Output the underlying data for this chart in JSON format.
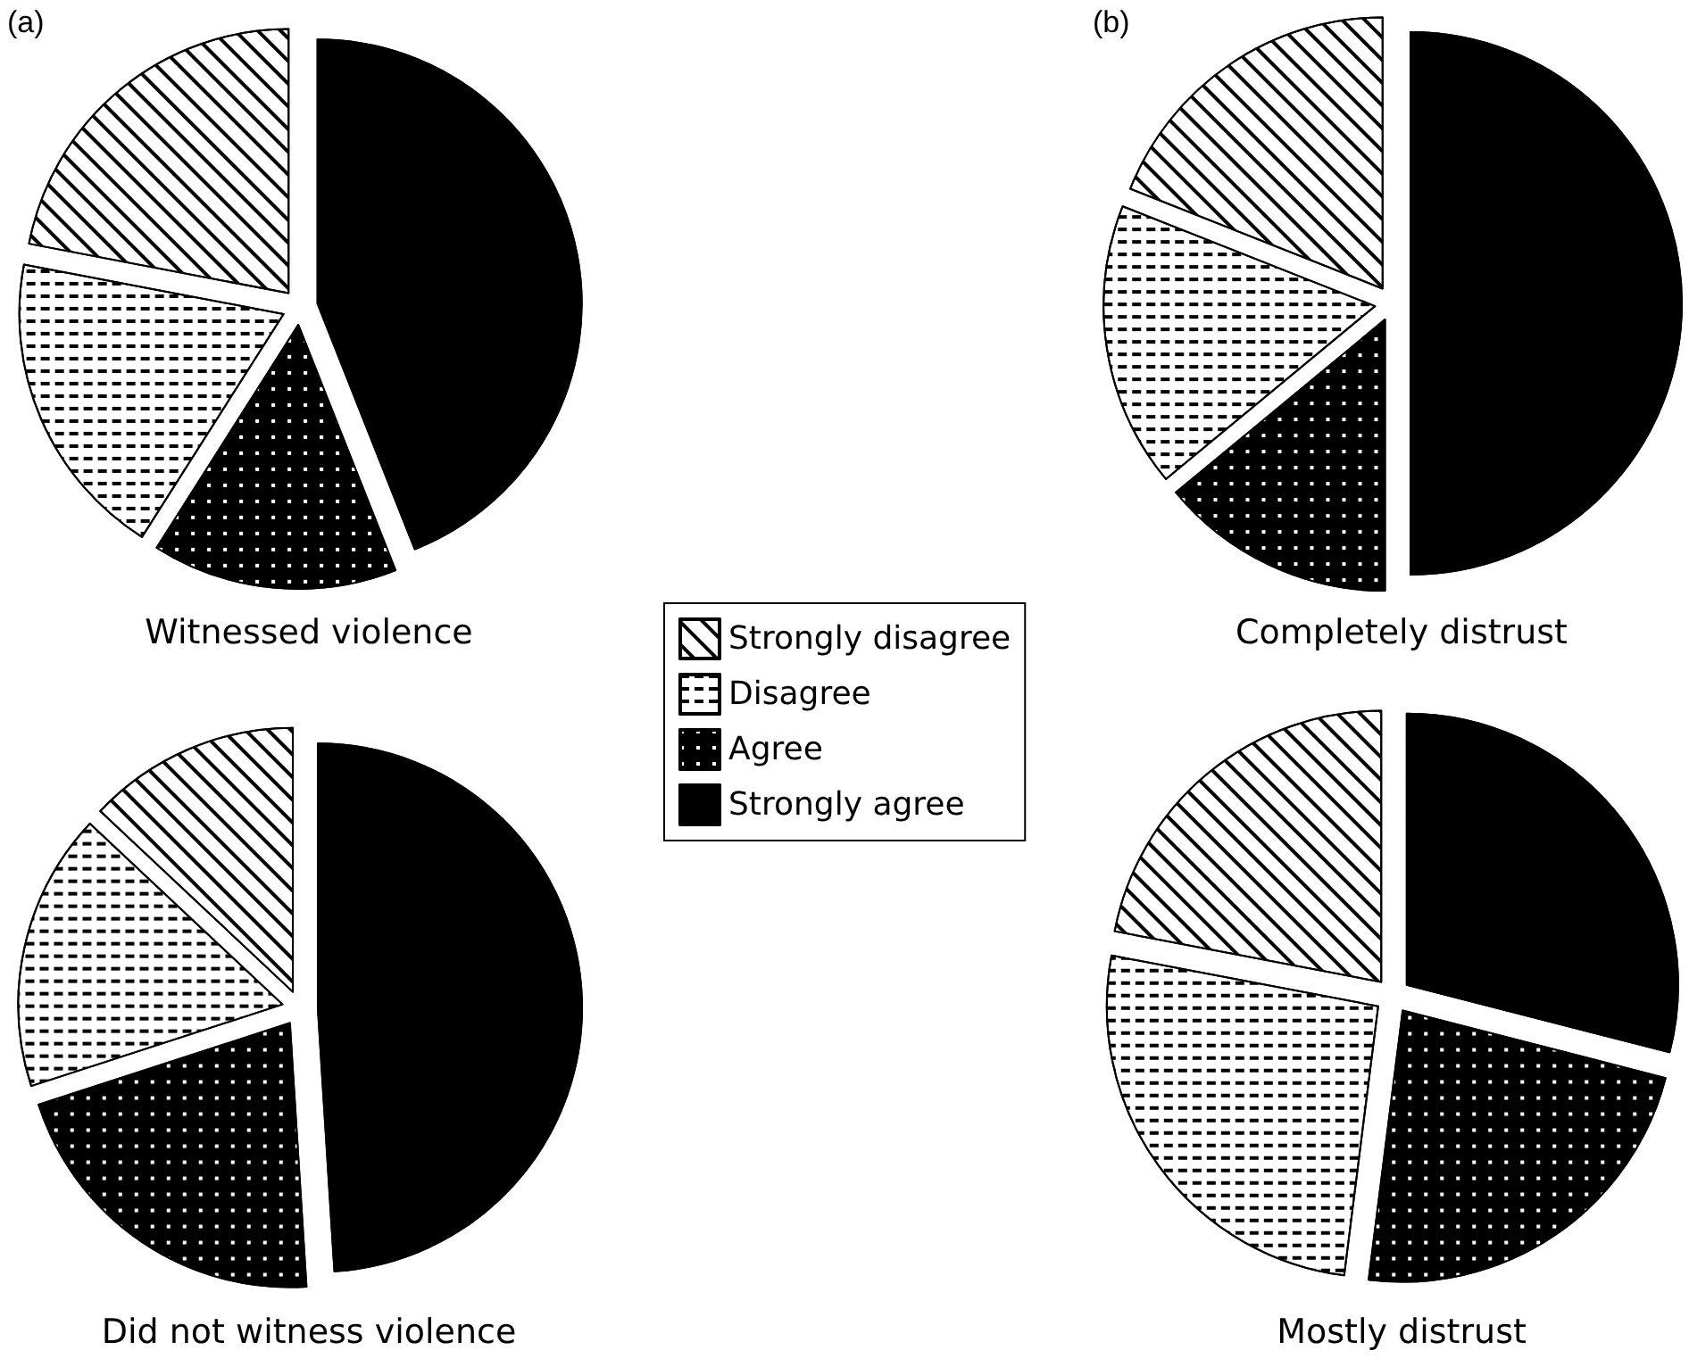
{
  "chart_data": [
    {
      "type": "pie",
      "title": "Witnessed violence",
      "annotations": [
        "(a)"
      ],
      "legend": "right",
      "categories": [
        "Strongly disagree",
        "Disagree",
        "Agree",
        "Strongly agree"
      ],
      "values": [
        22,
        19,
        15,
        44
      ],
      "colors": [
        "#ffffff",
        "#ffffff",
        "#000000",
        "#000000"
      ]
    },
    {
      "type": "pie",
      "title": "Did not witness violence",
      "categories": [
        null,
        null,
        null,
        null
      ],
      "values": [
        13,
        17,
        21,
        49
      ],
      "colors": [
        "#ffffff",
        "#ffffff",
        "#000000",
        "#000000"
      ]
    },
    {
      "type": "pie",
      "title": "Completely distrust",
      "annotations": [
        "(b)"
      ],
      "categories": [
        null,
        null,
        null,
        null
      ],
      "values": [
        19,
        17,
        14,
        50
      ],
      "colors": [
        "#ffffff",
        "#ffffff",
        "#000000",
        "#000000"
      ]
    },
    {
      "type": "pie",
      "title": "Mostly distrust",
      "categories": [
        null,
        null,
        null,
        null
      ],
      "values": [
        22,
        26,
        23,
        29
      ],
      "colors": [
        "#ffffff",
        "#ffffff",
        "#000000",
        "#000000"
      ]
    }
  ]
}
